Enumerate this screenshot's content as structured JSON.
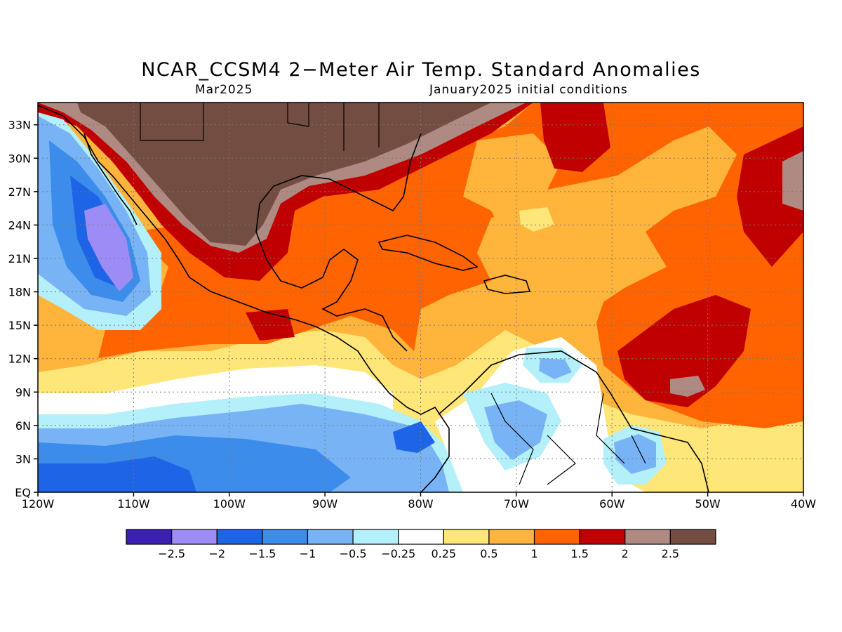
{
  "title": "NCAR_CCSM4 2−Meter Air Temp. Standard Anomalies",
  "valid_month": "Mar2025",
  "initial_conditions": "January2025 initial conditions",
  "map": {
    "lon_range": [
      -120,
      -40
    ],
    "lat_range": [
      0,
      35
    ],
    "lat_ticks": [
      {
        "v": 33,
        "label": "33N"
      },
      {
        "v": 30,
        "label": "30N"
      },
      {
        "v": 27,
        "label": "27N"
      },
      {
        "v": 24,
        "label": "24N"
      },
      {
        "v": 21,
        "label": "21N"
      },
      {
        "v": 18,
        "label": "18N"
      },
      {
        "v": 15,
        "label": "15N"
      },
      {
        "v": 12,
        "label": "12N"
      },
      {
        "v": 9,
        "label": "9N"
      },
      {
        "v": 6,
        "label": "6N"
      },
      {
        "v": 3,
        "label": "3N"
      },
      {
        "v": 0,
        "label": "EQ"
      }
    ],
    "lon_ticks": [
      {
        "v": -120,
        "label": "120W"
      },
      {
        "v": -110,
        "label": "110W"
      },
      {
        "v": -100,
        "label": "100W"
      },
      {
        "v": -90,
        "label": "90W"
      },
      {
        "v": -80,
        "label": "80W"
      },
      {
        "v": -70,
        "label": "70W"
      },
      {
        "v": -60,
        "label": "60W"
      },
      {
        "v": -50,
        "label": "50W"
      },
      {
        "v": -40,
        "label": "40W"
      }
    ],
    "grid": true
  },
  "colorbar": {
    "colors": [
      "#3d1eb4",
      "#9d8cf5",
      "#1e64e6",
      "#3c8ceb",
      "#78b4f5",
      "#b4f0fa",
      "#ffffff",
      "#ffe678",
      "#ffb43c",
      "#ff6400",
      "#c00000",
      "#af8a82",
      "#744d42"
    ],
    "labels": [
      "−2.5",
      "−2",
      "−1.5",
      "−1",
      "−0.5",
      "−0.25",
      "0.25",
      "0.5",
      "1",
      "1.5",
      "2",
      "2.5"
    ]
  }
}
